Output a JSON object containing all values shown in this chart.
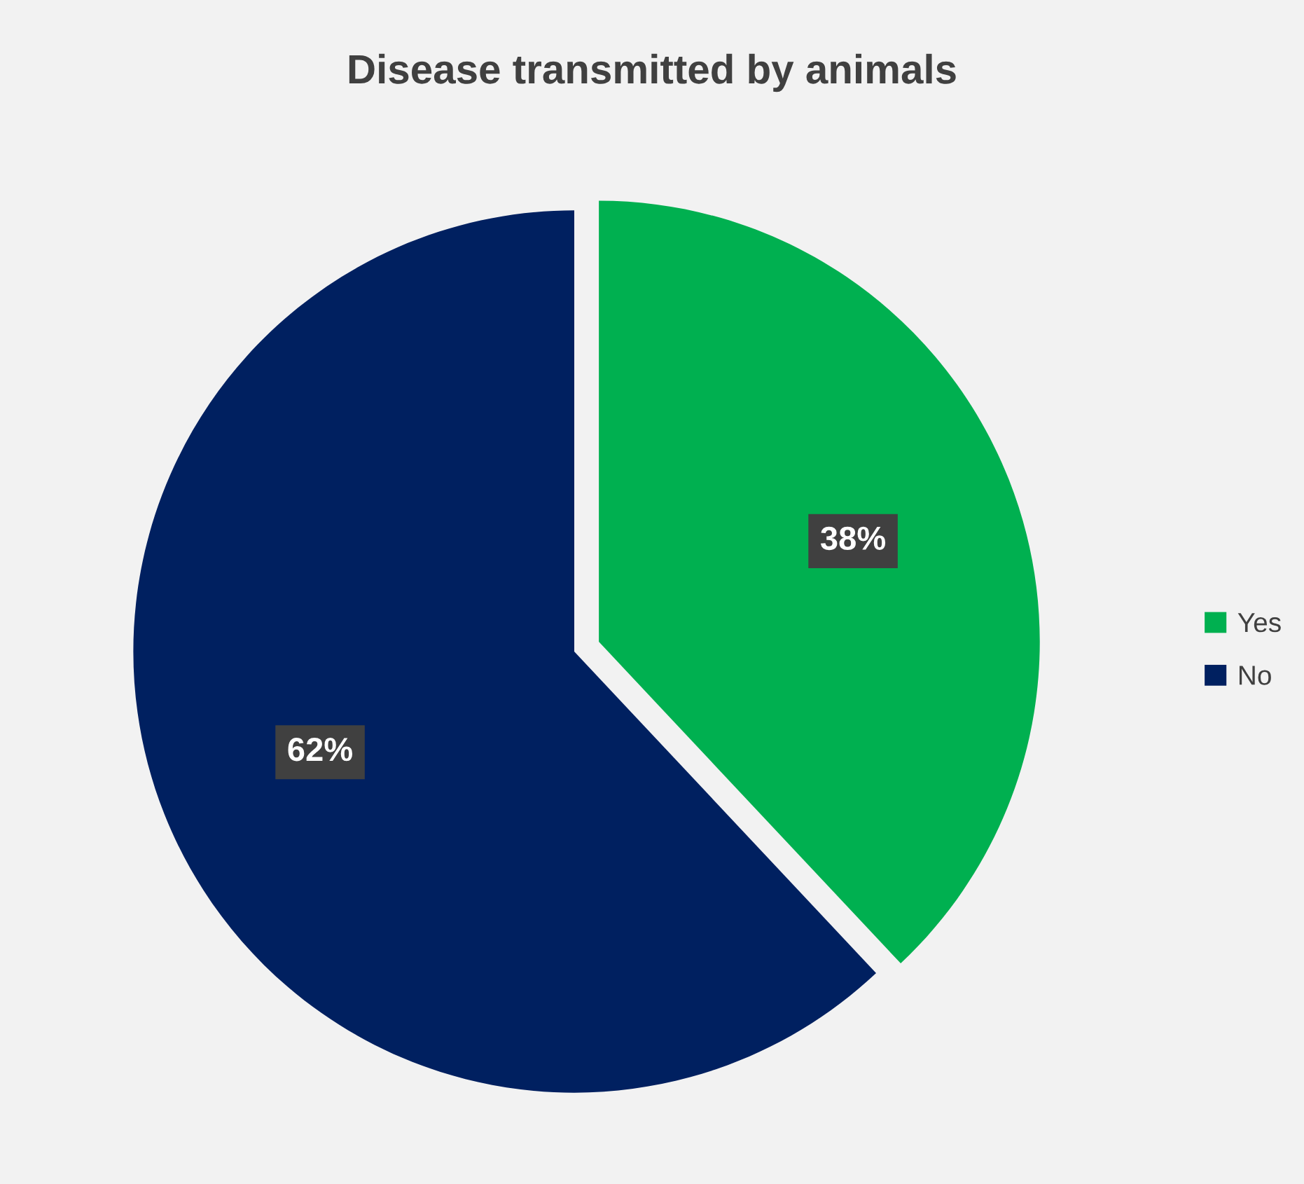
{
  "chart_data": {
    "type": "pie",
    "title": "Disease transmitted by animals",
    "categories": [
      "Yes",
      "No"
    ],
    "values": [
      38,
      62
    ],
    "colors": [
      "#00b050",
      "#002060"
    ],
    "value_labels": [
      "38%",
      "62%"
    ],
    "legend": "right"
  }
}
